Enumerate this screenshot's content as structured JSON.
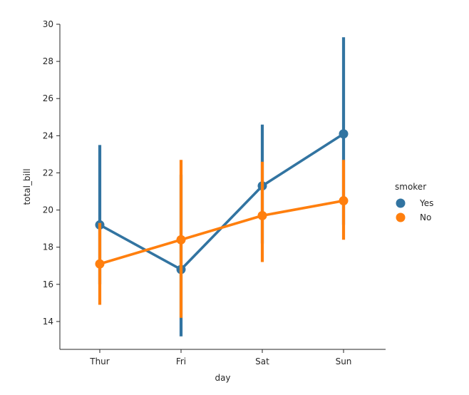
{
  "chart_data": {
    "type": "line",
    "xlabel": "day",
    "ylabel": "total_bill",
    "categories": [
      "Thur",
      "Fri",
      "Sat",
      "Sun"
    ],
    "ylim": [
      12.5,
      30
    ],
    "yticks": [
      14,
      16,
      18,
      20,
      22,
      24,
      26,
      28,
      30
    ],
    "legend": {
      "title": "smoker",
      "placement": "right"
    },
    "series": [
      {
        "name": "Yes",
        "color": "#3274a1",
        "values": [
          19.2,
          16.8,
          21.3,
          24.1
        ],
        "ci_low": [
          16.0,
          13.2,
          18.2,
          19.2
        ],
        "ci_high": [
          23.5,
          21.9,
          24.6,
          29.3
        ]
      },
      {
        "name": "No",
        "color": "#ff7f0e",
        "values": [
          17.1,
          18.4,
          19.7,
          20.5
        ],
        "ci_low": [
          14.9,
          14.2,
          17.2,
          18.4
        ],
        "ci_high": [
          19.3,
          22.7,
          22.6,
          22.7
        ]
      }
    ]
  }
}
